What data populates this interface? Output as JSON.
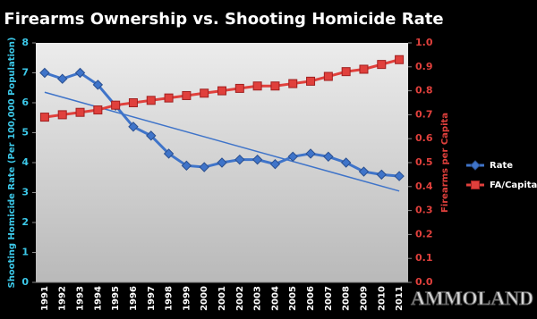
{
  "chart_data": {
    "type": "line",
    "title": "Firearms Ownership vs. Shooting Homicide Rate",
    "y_label": "Shooting Homicide Rate (Per 100,000 Population)",
    "y2_label": "Firearms per Capita",
    "categories": [
      "1991",
      "1992",
      "1993",
      "1994",
      "1995",
      "1996",
      "1997",
      "1998",
      "1999",
      "2000",
      "2001",
      "2002",
      "2003",
      "2004",
      "2005",
      "2006",
      "2007",
      "2008",
      "2009",
      "2010",
      "2011"
    ],
    "series": [
      {
        "name": "Rate",
        "color": "#3f74c9",
        "marker": "diamond",
        "values": [
          7.0,
          6.8,
          7.0,
          6.6,
          5.9,
          5.2,
          4.9,
          4.3,
          3.9,
          3.85,
          4.0,
          4.1,
          4.1,
          3.95,
          4.2,
          4.3,
          4.2,
          4.0,
          3.7,
          3.6,
          3.55
        ]
      },
      {
        "name": "FA/Capita",
        "color": "#e0403c",
        "marker": "square",
        "axis": "y2",
        "values": [
          0.69,
          0.7,
          0.71,
          0.72,
          0.74,
          0.75,
          0.76,
          0.77,
          0.78,
          0.79,
          0.8,
          0.81,
          0.82,
          0.82,
          0.83,
          0.84,
          0.86,
          0.88,
          0.89,
          0.91,
          0.93
        ]
      }
    ],
    "trendline": {
      "series": 0,
      "values": [
        6.35,
        3.05
      ]
    },
    "ylim": [
      0,
      8
    ],
    "yticks": [
      0,
      1,
      2,
      3,
      4,
      5,
      6,
      7,
      8
    ],
    "y2lim": [
      0,
      1
    ],
    "y2ticks": [
      {
        "value": 0,
        "label": "0.0"
      },
      0.1,
      0.2,
      0.3,
      0.4,
      0.5,
      0.6,
      0.7,
      0.8,
      0.9,
      {
        "value": 1,
        "label": "1.0"
      }
    ],
    "legend": "right",
    "watermark": "AMMOLAND"
  }
}
